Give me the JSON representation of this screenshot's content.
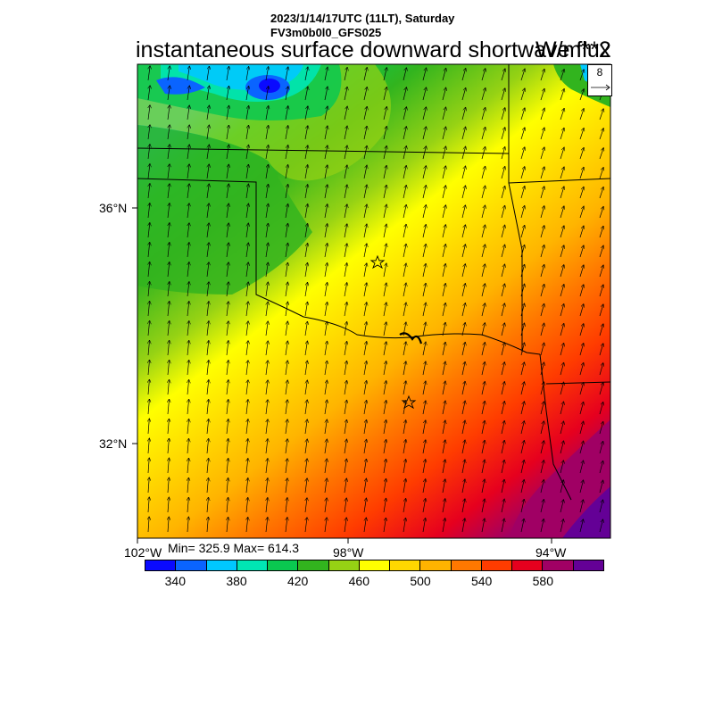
{
  "header": {
    "line1": "2023/1/14/17UTC (11LT), Saturday",
    "line2": "FV3m0b0l0_GFS025",
    "title": "instantaneous surface downward shortwave flux",
    "units": "W/m**2"
  },
  "stats": "Min= 325.9 Max= 614.3",
  "axes": {
    "lat_labels": [
      "36°N",
      "32°N"
    ],
    "lon_labels": [
      "102°W",
      "98°W",
      "94°W"
    ]
  },
  "vector_legend": {
    "value": "8"
  },
  "colorbar": {
    "colors": [
      "#0a0aff",
      "#0a64ff",
      "#00c8ff",
      "#00e6b4",
      "#0ac850",
      "#32b41e",
      "#96d214",
      "#ffff00",
      "#ffd700",
      "#ffb400",
      "#ff7800",
      "#ff3c00",
      "#e6001e",
      "#a00064",
      "#640096"
    ],
    "labels": [
      "340",
      "380",
      "420",
      "460",
      "500",
      "540",
      "580"
    ]
  },
  "markers": [
    "star-marker",
    "star-marker"
  ]
}
